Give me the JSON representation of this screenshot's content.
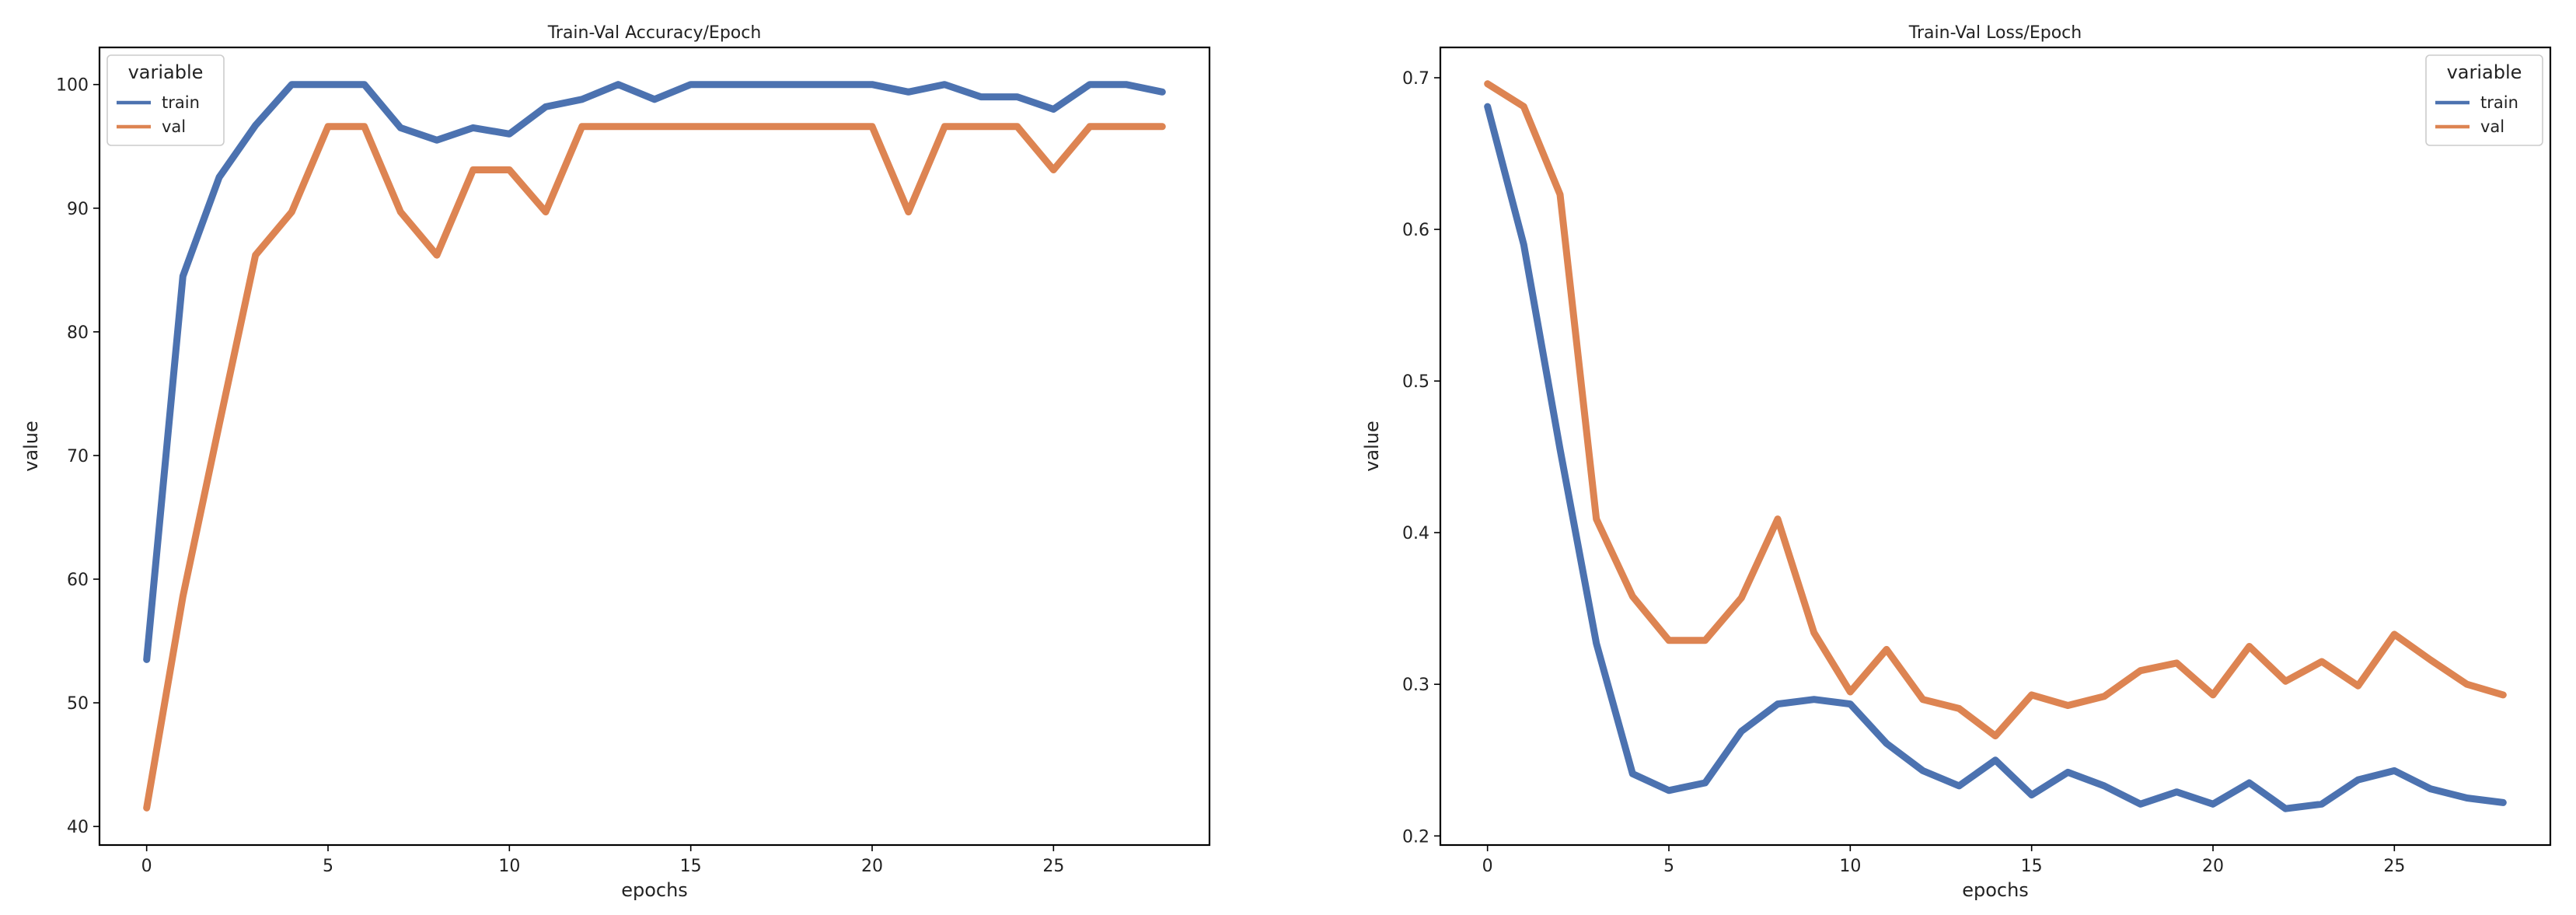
{
  "chart_data": [
    {
      "type": "line",
      "title": "Train-Val Accuracy/Epoch",
      "xlabel": "epochs",
      "ylabel": "value",
      "xlim": [
        -1.3,
        29.3
      ],
      "ylim": [
        38.5,
        103
      ],
      "xticks": [
        0,
        5,
        10,
        15,
        20,
        25
      ],
      "yticks": [
        40,
        50,
        60,
        70,
        80,
        90,
        100
      ],
      "grid": false,
      "legend": {
        "title": "variable",
        "position": "top-left"
      },
      "x": [
        0,
        1,
        2,
        3,
        4,
        5,
        6,
        7,
        8,
        9,
        10,
        11,
        12,
        13,
        14,
        15,
        16,
        17,
        18,
        19,
        20,
        21,
        22,
        23,
        24,
        25,
        26,
        27,
        28
      ],
      "series": [
        {
          "name": "train",
          "color": "#4c72b0",
          "values": [
            53.5,
            84.5,
            92.5,
            96.7,
            100,
            100,
            100,
            96.5,
            95.5,
            96.5,
            96,
            98.2,
            98.8,
            100,
            98.8,
            100,
            100,
            100,
            100,
            100,
            100,
            99.4,
            100,
            99,
            99,
            98,
            100,
            100,
            99.4
          ]
        },
        {
          "name": "val",
          "color": "#dd8452",
          "values": [
            41.5,
            58.6,
            72.5,
            86.2,
            89.7,
            96.6,
            96.6,
            89.7,
            86.2,
            93.1,
            93.1,
            89.7,
            96.6,
            96.6,
            96.6,
            96.6,
            96.6,
            96.6,
            96.6,
            96.6,
            96.6,
            89.7,
            96.6,
            96.6,
            96.6,
            93.1,
            96.6,
            96.6,
            96.6
          ]
        }
      ]
    },
    {
      "type": "line",
      "title": "Train-Val Loss/Epoch",
      "xlabel": "epochs",
      "ylabel": "value",
      "xlim": [
        -1.3,
        29.3
      ],
      "ylim": [
        0.194,
        0.72
      ],
      "xticks": [
        0,
        5,
        10,
        15,
        20,
        25
      ],
      "yticks": [
        0.2,
        0.3,
        0.4,
        0.5,
        0.6,
        0.7
      ],
      "grid": false,
      "legend": {
        "title": "variable",
        "position": "top-right"
      },
      "x": [
        0,
        1,
        2,
        3,
        4,
        5,
        6,
        7,
        8,
        9,
        10,
        11,
        12,
        13,
        14,
        15,
        16,
        17,
        18,
        19,
        20,
        21,
        22,
        23,
        24,
        25,
        26,
        27,
        28
      ],
      "series": [
        {
          "name": "train",
          "color": "#4c72b0",
          "values": [
            0.681,
            0.59,
            0.455,
            0.327,
            0.241,
            0.23,
            0.235,
            0.269,
            0.287,
            0.29,
            0.287,
            0.261,
            0.243,
            0.233,
            0.25,
            0.227,
            0.242,
            0.233,
            0.221,
            0.229,
            0.221,
            0.235,
            0.218,
            0.221,
            0.237,
            0.243,
            0.231,
            0.225,
            0.222
          ]
        },
        {
          "name": "val",
          "color": "#dd8452",
          "values": [
            0.696,
            0.681,
            0.623,
            0.409,
            0.358,
            0.329,
            0.329,
            0.357,
            0.409,
            0.334,
            0.295,
            0.323,
            0.29,
            0.284,
            0.266,
            0.293,
            0.286,
            0.292,
            0.309,
            0.314,
            0.293,
            0.325,
            0.302,
            0.315,
            0.299,
            0.333,
            0.316,
            0.3,
            0.293
          ]
        }
      ]
    }
  ]
}
